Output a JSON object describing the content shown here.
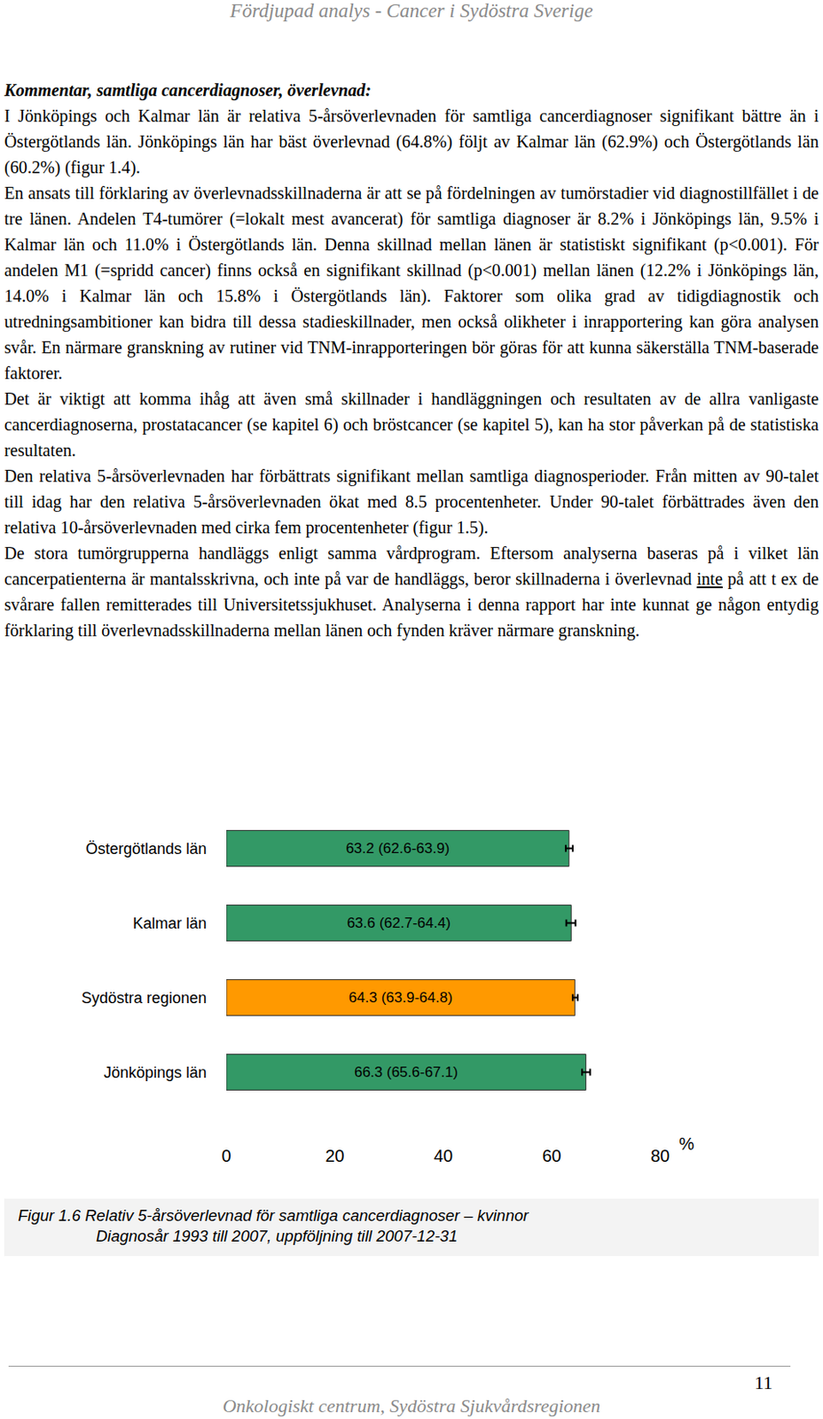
{
  "header": "Fördjupad analys - Cancer i Sydöstra Sverige",
  "heading": "Kommentar, samtliga cancerdiagnoser, överlevnad:",
  "paragraphs": [
    [
      "I Jönköpings och Kalmar län är relativa 5-årsöverlevnaden för samtliga cancerdiagnoser signifikant bättre än i Östergötlands län. Jönköpings län har bäst överlevnad (64.8%) följt av Kalmar län (62.9%) och Östergötlands län (60.2%) (figur 1.4)."
    ],
    [
      "En ansats till förklaring av överlevnadsskillnaderna är att se på fördelningen av tumör­stadier vid diagnostillfället i de tre länen. Andelen T4-tumörer (=lokalt mest avancerat) för samtliga diagnoser är 8.2% i Jönköpings län, 9.5% i Kalmar län och 11.0% i Östergötlands län. Denna skillnad mellan länen är statistiskt signifikant (p<0.001). För andelen M1 (=spridd cancer) finns också en signifikant skillnad (p<0.001) mellan länen (12.2% i Jön­köpings län, 14.0% i Kalmar län och 15.8% i Östergötlands län). Faktorer som olika grad av tidigdiagnostik och utredningsambitioner kan bidra till dessa stadieskillnader, men också olikheter i inrapportering kan göra analysen svår. En närmare granskning av rutiner vid TNM-inrapporteringen bör göras för att kunna säkerställa TNM-baserade faktorer."
    ],
    [
      "Det är viktigt att komma ihåg att även små skillnader i handläggningen och resultaten av de allra vanligaste cancerdiagnoserna, prostatacancer (se kapitel 6) och bröstcancer (se kapitel 5), kan ha stor påverkan på de statistiska resultaten."
    ],
    [
      "Den relativa 5-årsöverlevnaden har förbättrats signifikant mellan samtliga diagnosperioder. Från mitten av 90-talet till idag har den relativa 5-årsöverlevnaden ökat med 8.5 procent­enheter. Under 90-talet förbättrades även den relativa 10-årsöverlevnaden med cirka fem procentenheter (figur 1.5)."
    ],
    [
      "De stora tumörgrupperna handläggs enligt samma vårdprogram. Eftersom analyserna base­ras på i vilket län cancerpatienterna är mantalsskrivna, och inte på var de handläggs, beror skillnaderna i överlevnad ",
      {
        "text": "inte",
        "underline": true
      },
      " på att t ex de svårare fallen remitterades till Universitets­sjukhuset. Analyserna i denna rapport har inte kunnat ge någon entydig förklaring till överlevnadsskillnaderna mellan länen och fynden kräver närmare granskning."
    ]
  ],
  "chart_data": {
    "type": "bar",
    "orientation": "horizontal",
    "categories": [
      "Östergötlands län",
      "Kalmar län",
      "Sydöstra regionen",
      "Jönköpings län"
    ],
    "values": [
      63.2,
      63.6,
      64.3,
      66.3
    ],
    "ci_low": [
      62.6,
      62.7,
      63.9,
      65.6
    ],
    "ci_high": [
      63.9,
      64.4,
      64.8,
      67.1
    ],
    "value_labels": [
      "63.2 (62.6-63.9)",
      "63.6 (62.7-64.4)",
      "64.3 (63.9-64.8)",
      "66.3 (65.6-67.1)"
    ],
    "data_labels": true,
    "colors": [
      "#339966",
      "#339966",
      "#ff9900",
      "#339966"
    ],
    "xlabel": "%",
    "xlim": [
      0,
      80
    ],
    "xticks": [
      0,
      20,
      40,
      60,
      80
    ],
    "grid": false
  },
  "caption": [
    "Figur 1.6 Relativ 5-årsöverlevnad för samtliga cancerdiagnoser – kvinnor",
    "Diagnosår 1993 till 2007, uppföljning till 2007-12-31"
  ],
  "page_number": 11,
  "footer": "Onkologiskt centrum, Sydöstra Sjukvårdsregionen"
}
